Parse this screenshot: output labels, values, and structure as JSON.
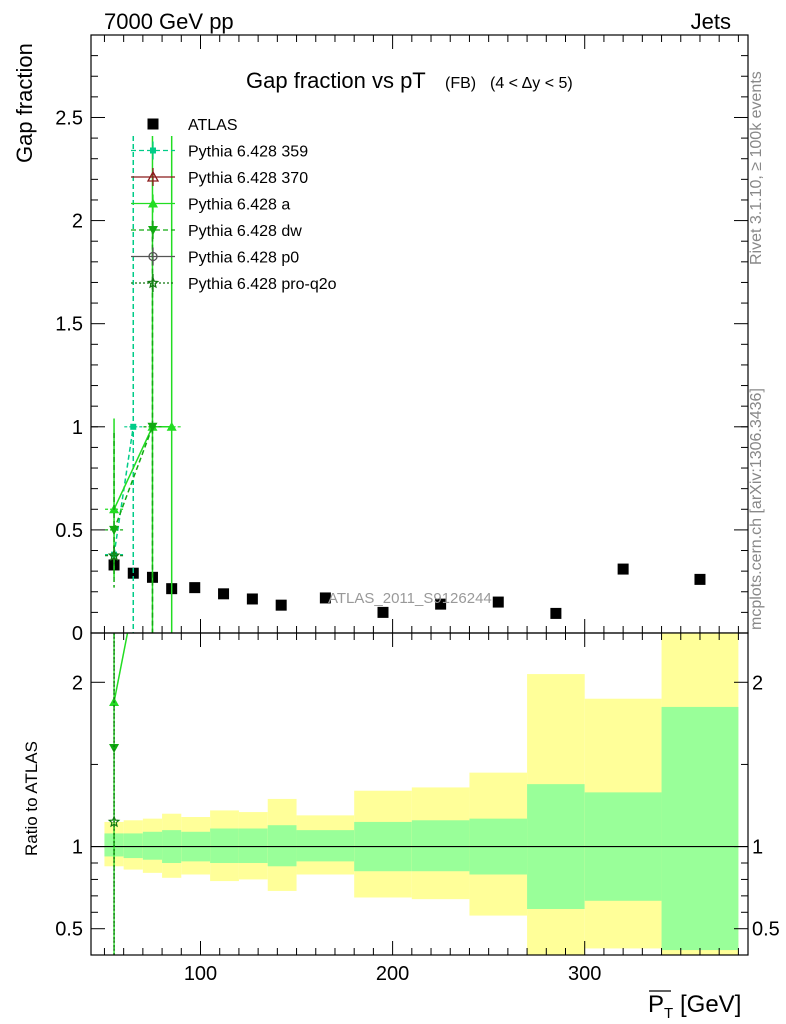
{
  "header": {
    "energy_label": "7000 GeV pp",
    "process_label": "Jets"
  },
  "side_text": {
    "rivet": "Rivet 3.1.10, ≥ 100k events",
    "mcplots": "mcplots.cern.ch [arXiv:1306.3436]"
  },
  "chart_data": [
    {
      "type": "scatter",
      "title": "Gap fraction vs pT",
      "title_suffix": "(FB)",
      "title_range": "(4 < Δy < 5)",
      "ylabel": "Gap fraction",
      "xlim": [
        43,
        385
      ],
      "ylim": [
        0,
        2.9
      ],
      "yticks": [
        0,
        0.5,
        1,
        1.5,
        2,
        2.5
      ],
      "ytick_labels": [
        "0",
        "0.5",
        "1",
        "1.5",
        "2",
        "2.5"
      ],
      "watermark": "ATLAS_2011_S9126244",
      "legend_position": "top-left",
      "series": [
        {
          "name": "ATLAS",
          "color": "#000000",
          "marker": "square",
          "points": [
            {
              "x": 55,
              "y": 0.33
            },
            {
              "x": 65,
              "y": 0.29
            },
            {
              "x": 75,
              "y": 0.27
            },
            {
              "x": 85,
              "y": 0.215
            },
            {
              "x": 97,
              "y": 0.22
            },
            {
              "x": 112,
              "y": 0.19
            },
            {
              "x": 127,
              "y": 0.165
            },
            {
              "x": 142,
              "y": 0.135
            },
            {
              "x": 165,
              "y": 0.17
            },
            {
              "x": 195,
              "y": 0.1
            },
            {
              "x": 225,
              "y": 0.14
            },
            {
              "x": 255,
              "y": 0.15
            },
            {
              "x": 285,
              "y": 0.095
            },
            {
              "x": 320,
              "y": 0.31
            },
            {
              "x": 360,
              "y": 0.26
            }
          ]
        },
        {
          "name": "Pythia 6.428 359",
          "color": "#00cc88",
          "marker": "square-small",
          "line": "dashed",
          "points": [
            {
              "x": 55,
              "y": 0.38,
              "err": [
                0.34,
                0.42
              ]
            },
            {
              "x": 65,
              "y": 1.0,
              "err": [
                0,
                2.41
              ]
            }
          ]
        },
        {
          "name": "Pythia 6.428 370",
          "color": "#8b1a1a",
          "marker": "triangle-open",
          "line": "solid",
          "points": []
        },
        {
          "name": "Pythia 6.428 a",
          "color": "#22dd22",
          "marker": "triangle",
          "line": "solid",
          "points": [
            {
              "x": 55,
              "y": 0.6,
              "err": [
                0.27,
                1.04
              ]
            },
            {
              "x": 75,
              "y": 1.0,
              "err": [
                0,
                2.41
              ]
            },
            {
              "x": 85,
              "y": 1.0,
              "err": [
                0,
                2.41
              ]
            }
          ]
        },
        {
          "name": "Pythia 6.428 dw",
          "color": "#11aa11",
          "marker": "triangle-down",
          "line": "dashed",
          "points": [
            {
              "x": 55,
              "y": 0.5,
              "err": [
                0.22,
                0.97
              ]
            },
            {
              "x": 75,
              "y": 1.0,
              "err": [
                0,
                2.0
              ]
            }
          ]
        },
        {
          "name": "Pythia 6.428 p0",
          "color": "#555555",
          "marker": "circle-open",
          "line": "solid",
          "points": []
        },
        {
          "name": "Pythia 6.428 pro-q2o",
          "color": "#117711",
          "marker": "star-open",
          "line": "dotted",
          "points": [
            {
              "x": 55,
              "y": 0.375,
              "err": [
                0.33,
                0.42
              ]
            }
          ]
        }
      ]
    },
    {
      "type": "area",
      "ylabel": "Ratio to ATLAS",
      "xlabel": "P_T [GeV]",
      "xlim": [
        43,
        385
      ],
      "ylim": [
        0.34,
        2.3
      ],
      "xticks": [
        100,
        200,
        300
      ],
      "xtick_labels": [
        "100",
        "200",
        "300"
      ],
      "yticks": [
        0.5,
        1,
        2
      ],
      "ytick_labels": [
        "0.5",
        "1",
        "2"
      ],
      "reference_line": 1,
      "bands": [
        {
          "x0": 50,
          "x1": 60,
          "inner": [
            0.94,
            1.08
          ],
          "outer": [
            0.88,
            1.15
          ]
        },
        {
          "x0": 60,
          "x1": 70,
          "inner": [
            0.93,
            1.08
          ],
          "outer": [
            0.86,
            1.16
          ]
        },
        {
          "x0": 70,
          "x1": 80,
          "inner": [
            0.92,
            1.09
          ],
          "outer": [
            0.84,
            1.17
          ]
        },
        {
          "x0": 80,
          "x1": 90,
          "inner": [
            0.9,
            1.1
          ],
          "outer": [
            0.81,
            1.2
          ]
        },
        {
          "x0": 90,
          "x1": 105,
          "inner": [
            0.91,
            1.09
          ],
          "outer": [
            0.83,
            1.18
          ]
        },
        {
          "x0": 105,
          "x1": 120,
          "inner": [
            0.9,
            1.11
          ],
          "outer": [
            0.79,
            1.22
          ]
        },
        {
          "x0": 120,
          "x1": 135,
          "inner": [
            0.9,
            1.11
          ],
          "outer": [
            0.8,
            1.21
          ]
        },
        {
          "x0": 135,
          "x1": 150,
          "inner": [
            0.88,
            1.13
          ],
          "outer": [
            0.73,
            1.29
          ]
        },
        {
          "x0": 150,
          "x1": 180,
          "inner": [
            0.91,
            1.1
          ],
          "outer": [
            0.83,
            1.19
          ]
        },
        {
          "x0": 180,
          "x1": 210,
          "inner": [
            0.85,
            1.15
          ],
          "outer": [
            0.69,
            1.34
          ]
        },
        {
          "x0": 210,
          "x1": 240,
          "inner": [
            0.85,
            1.16
          ],
          "outer": [
            0.68,
            1.36
          ]
        },
        {
          "x0": 240,
          "x1": 270,
          "inner": [
            0.83,
            1.17
          ],
          "outer": [
            0.58,
            1.45
          ]
        },
        {
          "x0": 270,
          "x1": 300,
          "inner": [
            0.62,
            1.38
          ],
          "outer": [
            0.3,
            2.05
          ]
        },
        {
          "x0": 300,
          "x1": 340,
          "inner": [
            0.67,
            1.33
          ],
          "outer": [
            0.38,
            1.9
          ]
        },
        {
          "x0": 340,
          "x1": 380,
          "inner": [
            0.37,
            1.85
          ],
          "outer": [
            0.3,
            2.5
          ]
        }
      ],
      "series": [
        {
          "name": "Pythia 6.428 a",
          "color": "#22dd22",
          "points": [
            {
              "x": 55,
              "y": 1.88
            },
            {
              "x": 62,
              "y": 2.5
            }
          ]
        },
        {
          "name": "Pythia 6.428 dw",
          "color": "#11aa11",
          "points": [
            {
              "x": 55,
              "y": 1.6
            }
          ]
        },
        {
          "name": "Pythia 6.428 pro-q2o",
          "color": "#117711",
          "points": [
            {
              "x": 55,
              "y": 1.15
            }
          ]
        }
      ]
    }
  ]
}
